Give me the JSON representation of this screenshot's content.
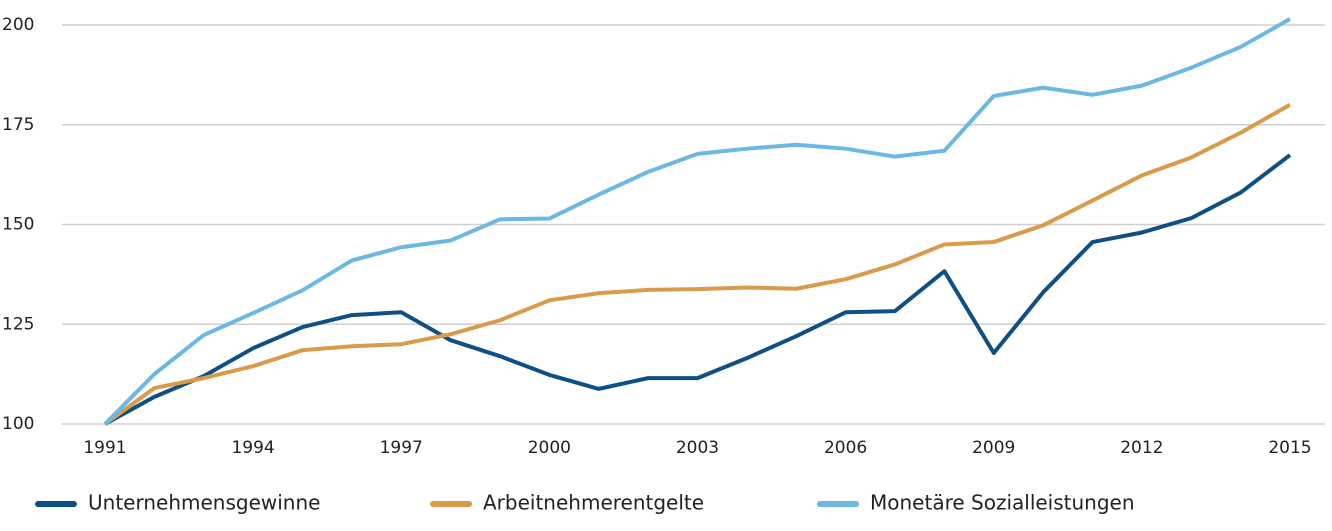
{
  "chart_data": {
    "type": "line",
    "x": [
      1991,
      1992,
      1993,
      1994,
      1995,
      1996,
      1997,
      1998,
      1999,
      2000,
      2001,
      2002,
      2003,
      2004,
      2005,
      2006,
      2007,
      2008,
      2009,
      2010,
      2011,
      2012,
      2013,
      2014,
      2015
    ],
    "series": [
      {
        "name": "Unternehmensgewinne",
        "color": "#0e4f84",
        "values": [
          100,
          106.8,
          112,
          119,
          124.3,
          127.3,
          128,
          121,
          117,
          112.3,
          108.8,
          111.5,
          111.5,
          116.5,
          122,
          128,
          128.3,
          138.3,
          117.8,
          133,
          145.6,
          148,
          151.6,
          158,
          167.4
        ]
      },
      {
        "name": "Arbeitnehmerentgelte",
        "color": "#d99b4a",
        "values": [
          100,
          109,
          111.5,
          114.5,
          118.5,
          119.5,
          120,
          122.5,
          126,
          131,
          132.8,
          133.6,
          133.8,
          134.2,
          133.9,
          136.3,
          140,
          145,
          145.6,
          149.8,
          156,
          162.3,
          166.8,
          173,
          180
        ]
      },
      {
        "name": "Monetäre Sozialleistungen",
        "color": "#6cb8e2",
        "values": [
          100,
          112.5,
          122.3,
          127.8,
          133.5,
          141,
          144.3,
          146,
          151.3,
          151.5,
          157.5,
          163.2,
          167.7,
          169,
          170,
          169,
          167,
          168.5,
          182.2,
          184.3,
          182.5,
          184.8,
          189.3,
          194.5,
          201.5
        ]
      }
    ],
    "xlim": [
      1991,
      2015
    ],
    "xticks": [
      1991,
      1994,
      1997,
      2000,
      2003,
      2006,
      2009,
      2012,
      2015
    ],
    "ylim": [
      100,
      200
    ],
    "yticks": [
      100,
      125,
      150,
      175,
      200
    ],
    "grid": true
  }
}
